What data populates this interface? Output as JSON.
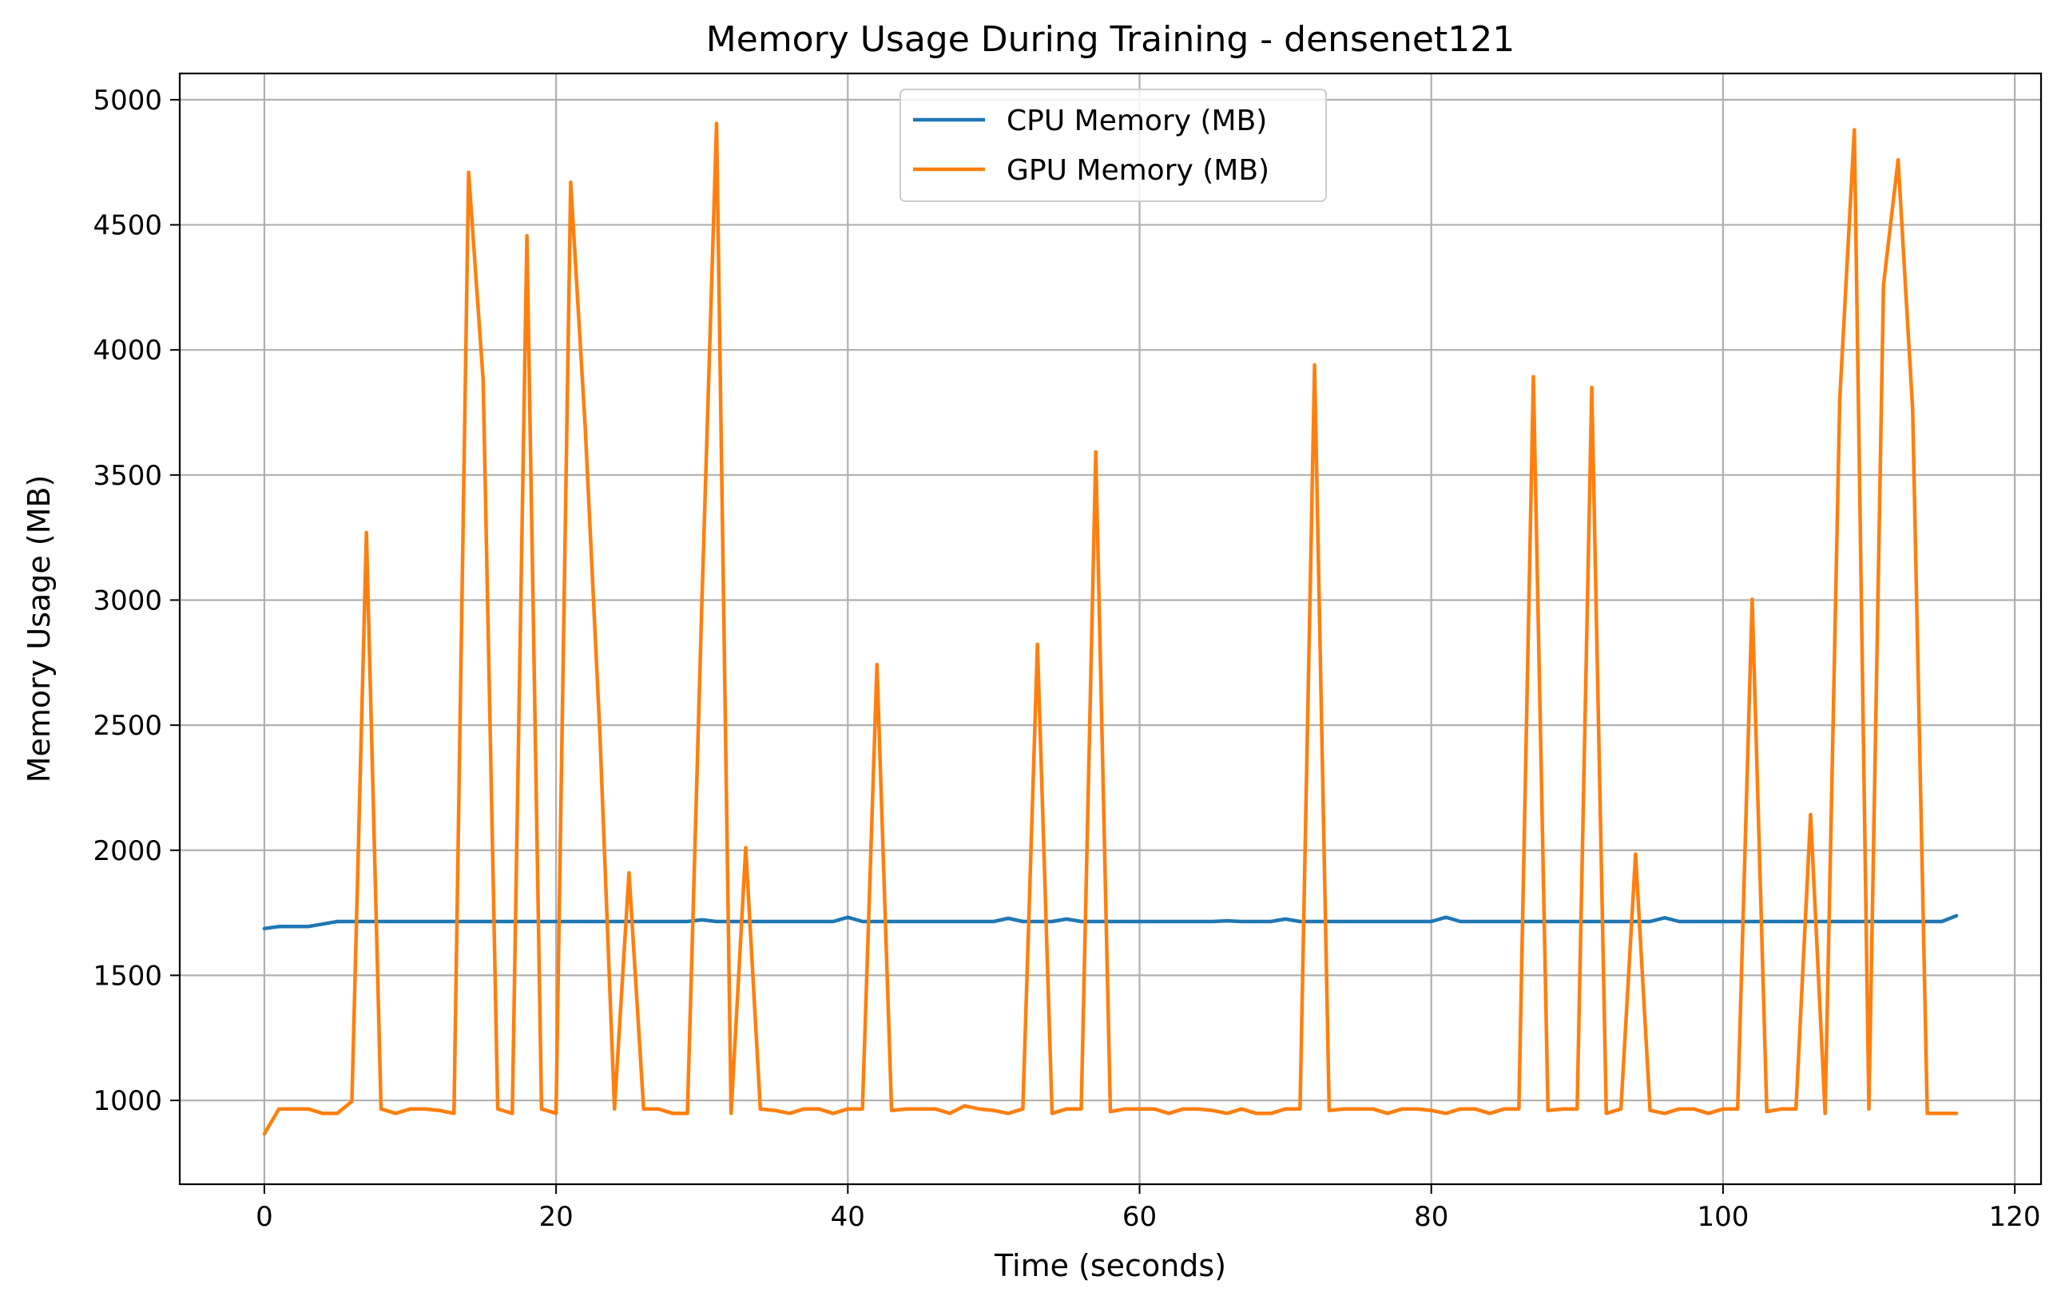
{
  "chart_data": {
    "type": "line",
    "title": "Memory Usage During Training - densenet121",
    "xlabel": "Time (seconds)",
    "ylabel": "Memory Usage (MB)",
    "xlim": [
      -5.8,
      121.8
    ],
    "ylim": [
      665,
      5105
    ],
    "xticks": [
      0,
      20,
      40,
      60,
      80,
      100,
      120
    ],
    "yticks": [
      1000,
      1500,
      2000,
      2500,
      3000,
      3500,
      4000,
      4500,
      5000
    ],
    "grid": true,
    "legend": "top-center",
    "series": [
      {
        "name": "CPU Memory (MB)",
        "color": "#1f77b4",
        "x": [
          0,
          1,
          2,
          3,
          4,
          5,
          6,
          7,
          8,
          9,
          10,
          11,
          12,
          13,
          14,
          15,
          16,
          17,
          18,
          19,
          20,
          21,
          22,
          23,
          24,
          25,
          26,
          27,
          28,
          29,
          30,
          31,
          32,
          33,
          34,
          35,
          36,
          37,
          38,
          39,
          40,
          41,
          42,
          43,
          44,
          45,
          46,
          47,
          48,
          49,
          50,
          51,
          52,
          53,
          54,
          55,
          56,
          57,
          58,
          59,
          60,
          61,
          62,
          63,
          64,
          65,
          66,
          67,
          68,
          69,
          70,
          71,
          72,
          73,
          74,
          75,
          76,
          77,
          78,
          79,
          80,
          81,
          82,
          83,
          84,
          85,
          86,
          87,
          88,
          89,
          90,
          91,
          92,
          93,
          94,
          95,
          96,
          97,
          98,
          99,
          100,
          101,
          102,
          103,
          104,
          105,
          106,
          107,
          108,
          109,
          110,
          111,
          112,
          113,
          114,
          115,
          116
        ],
        "values": [
          1687,
          1695,
          1695,
          1695,
          1705,
          1715,
          1715,
          1715,
          1715,
          1715,
          1715,
          1715,
          1715,
          1715,
          1715,
          1715,
          1715,
          1715,
          1715,
          1715,
          1715,
          1715,
          1715,
          1715,
          1715,
          1715,
          1715,
          1715,
          1715,
          1715,
          1722,
          1715,
          1715,
          1715,
          1715,
          1715,
          1715,
          1715,
          1715,
          1715,
          1732,
          1715,
          1715,
          1715,
          1715,
          1715,
          1715,
          1715,
          1715,
          1715,
          1715,
          1728,
          1715,
          1715,
          1715,
          1725,
          1715,
          1715,
          1715,
          1715,
          1715,
          1715,
          1715,
          1715,
          1715,
          1715,
          1718,
          1715,
          1715,
          1715,
          1725,
          1715,
          1715,
          1715,
          1715,
          1715,
          1715,
          1715,
          1715,
          1715,
          1715,
          1732,
          1715,
          1715,
          1715,
          1715,
          1715,
          1715,
          1715,
          1715,
          1715,
          1715,
          1715,
          1715,
          1715,
          1715,
          1730,
          1715,
          1715,
          1715,
          1715,
          1715,
          1715,
          1715,
          1715,
          1715,
          1715,
          1715,
          1715,
          1715,
          1715,
          1715,
          1715,
          1715,
          1715,
          1715,
          1738
        ]
      },
      {
        "name": "GPU Memory (MB)",
        "color": "#ff7f0e",
        "x": [
          0,
          1,
          2,
          3,
          4,
          5,
          6,
          7,
          8,
          9,
          10,
          11,
          12,
          13,
          14,
          15,
          16,
          17,
          18,
          19,
          20,
          21,
          22,
          23,
          24,
          25,
          26,
          27,
          28,
          29,
          30,
          31,
          32,
          33,
          34,
          35,
          36,
          37,
          38,
          39,
          40,
          41,
          42,
          43,
          44,
          45,
          46,
          47,
          48,
          49,
          50,
          51,
          52,
          53,
          54,
          55,
          56,
          57,
          58,
          59,
          60,
          61,
          62,
          63,
          64,
          65,
          66,
          67,
          68,
          69,
          70,
          71,
          72,
          73,
          74,
          75,
          76,
          77,
          78,
          79,
          80,
          81,
          82,
          83,
          84,
          85,
          86,
          87,
          88,
          89,
          90,
          91,
          92,
          93,
          94,
          95,
          96,
          97,
          98,
          99,
          100,
          101,
          102,
          103,
          104,
          105,
          106,
          107,
          108,
          109,
          110,
          111,
          112,
          113,
          114,
          115,
          116
        ],
        "values": [
          866,
          966,
          966,
          966,
          948,
          948,
          996,
          3270,
          966,
          948,
          966,
          966,
          960,
          948,
          4710,
          3880,
          966,
          948,
          4456,
          966,
          948,
          4670,
          3690,
          2470,
          966,
          1910,
          966,
          966,
          948,
          948,
          3000,
          4905,
          948,
          2010,
          966,
          960,
          948,
          966,
          966,
          948,
          966,
          966,
          2742,
          960,
          966,
          966,
          966,
          948,
          978,
          966,
          960,
          948,
          966,
          2823,
          948,
          966,
          966,
          3592,
          955,
          966,
          966,
          966,
          948,
          966,
          966,
          960,
          948,
          966,
          948,
          948,
          966,
          966,
          3940,
          960,
          966,
          966,
          966,
          948,
          966,
          966,
          960,
          948,
          966,
          966,
          948,
          966,
          966,
          3893,
          960,
          966,
          966,
          3850,
          948,
          966,
          1985,
          960,
          948,
          966,
          966,
          948,
          966,
          966,
          3003,
          955,
          966,
          966,
          2143,
          948,
          3800,
          4880,
          966,
          4260,
          4760,
          3760,
          948,
          948,
          948
        ]
      }
    ]
  }
}
